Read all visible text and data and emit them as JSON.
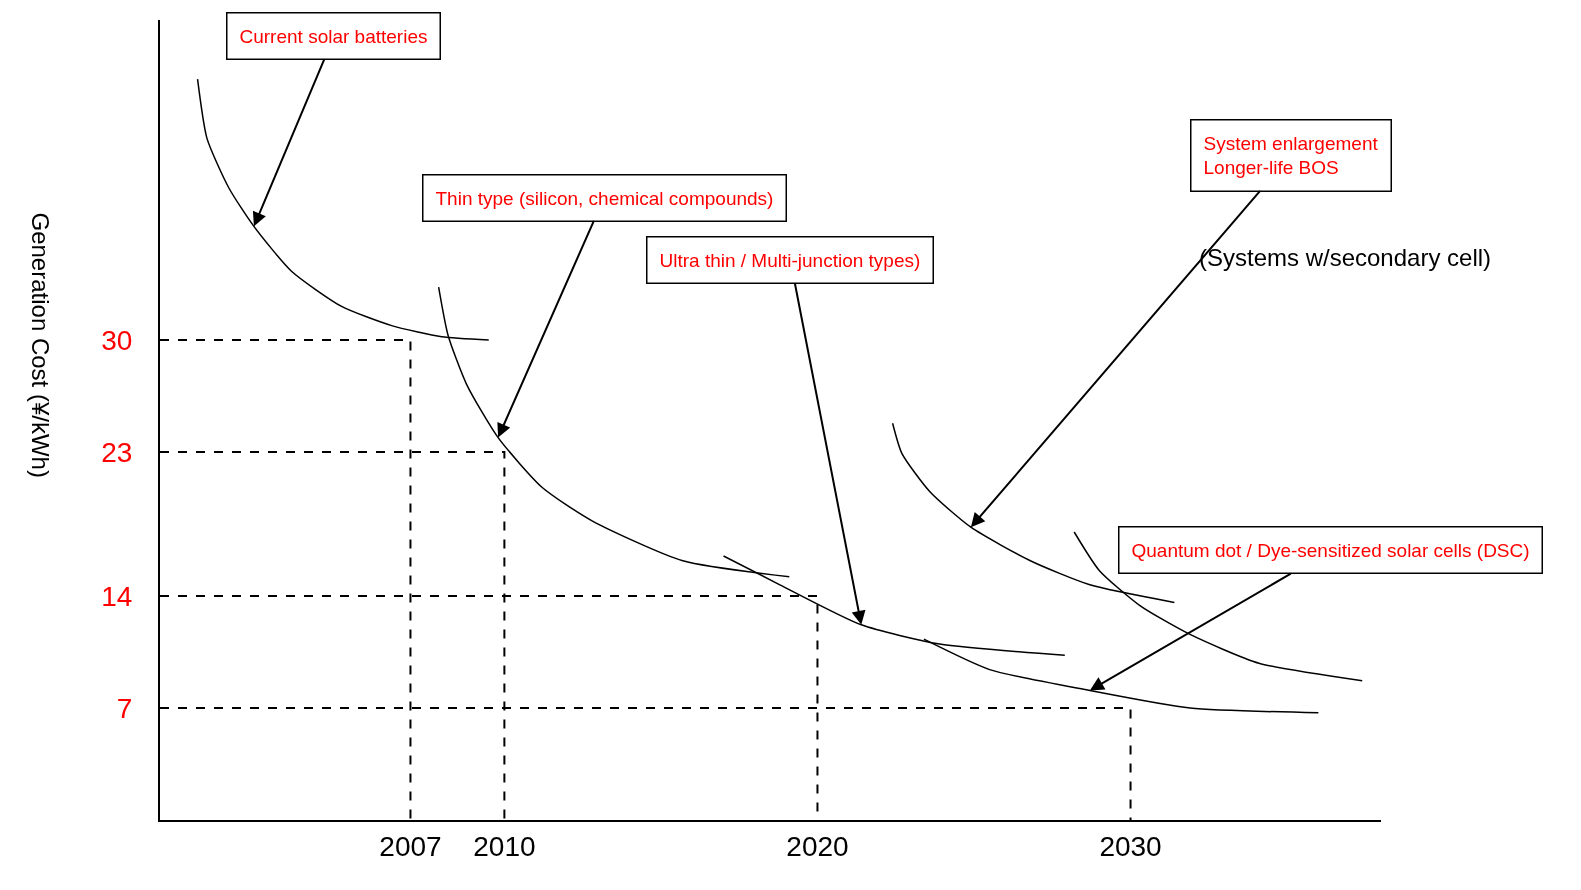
{
  "chart_data": {
    "type": "line",
    "ylabel": "Generation Cost (¥/kWh)",
    "xlim": [
      1999,
      2038
    ],
    "xticks": [
      2007,
      2010,
      2020,
      2030
    ],
    "ylim": [
      0,
      50
    ],
    "yticks": [
      7,
      14,
      23,
      30
    ],
    "grid": false,
    "marker": "none",
    "line_style": "solid",
    "series": [
      {
        "color": "#000000",
        "x": [
          2000.2,
          2000.5,
          2001.2,
          2002.0,
          2003.2,
          2004.8,
          2006.4,
          2008.0,
          2009.5
        ],
        "values": [
          46.3,
          42.6,
          39.5,
          37.1,
          34.3,
          32.1,
          30.9,
          30.2,
          30.0
        ]
      },
      {
        "color": "#000000",
        "x": [
          2007.9,
          2008.2,
          2008.8,
          2009.8,
          2011.2,
          2012.8,
          2015.7,
          2019.1
        ],
        "values": [
          33.3,
          30.3,
          27.2,
          23.9,
          20.8,
          18.7,
          16.2,
          15.2
        ]
      },
      {
        "color": "#000000",
        "x": [
          2017.0,
          2018.8,
          2021.4,
          2023.9,
          2027.9
        ],
        "values": [
          16.5,
          14.7,
          12.2,
          11.0,
          10.3
        ]
      },
      {
        "color": "#000000",
        "x": [
          2022.4,
          2022.7,
          2023.6,
          2024.9,
          2026.8,
          2028.7,
          2031.4
        ],
        "values": [
          24.8,
          22.9,
          20.5,
          18.3,
          16.2,
          14.7,
          13.6
        ]
      },
      {
        "color": "#000000",
        "x": [
          2023.4,
          2025.5,
          2028.7,
          2031.9,
          2036.0
        ],
        "values": [
          11.3,
          9.4,
          8.1,
          7.0,
          6.7
        ]
      },
      {
        "color": "#000000",
        "x": [
          2028.2,
          2029.0,
          2030.3,
          2031.9,
          2034.1,
          2037.4
        ],
        "values": [
          18.0,
          15.6,
          13.4,
          11.6,
          9.8,
          8.7
        ]
      },
      {
        "color": "#000000",
        "line_style": "dashed",
        "x": [
          1999,
          2007,
          2007
        ],
        "values": [
          30,
          30,
          0
        ]
      },
      {
        "color": "#000000",
        "line_style": "dashed",
        "x": [
          1999,
          2010,
          2010
        ],
        "values": [
          23,
          23,
          0
        ]
      },
      {
        "color": "#000000",
        "line_style": "dashed",
        "x": [
          1999,
          2020,
          2020
        ],
        "values": [
          14,
          14,
          0
        ]
      },
      {
        "color": "#000000",
        "line_style": "dashed",
        "x": [
          1999,
          2030,
          2030
        ],
        "values": [
          7,
          7,
          0
        ]
      }
    ],
    "annotations": [
      {
        "text": "Current solar batteries",
        "x": 2002.0,
        "y": 37.1
      },
      {
        "text": "Thin type (silicon, chemical compounds)",
        "x": 2009.8,
        "y": 23.9
      },
      {
        "text": "Ultra thin / Multi-junction types)",
        "x": 2021.4,
        "y": 12.2
      },
      {
        "text": "System enlargement\nLonger-life BOS",
        "x": 2024.9,
        "y": 18.3
      },
      "(Systems w/secondary cell)",
      {
        "text": "Quantum dot / Dye-sensitized solar cells (DSC)",
        "x": 2028.7,
        "y": 8.1
      }
    ]
  }
}
